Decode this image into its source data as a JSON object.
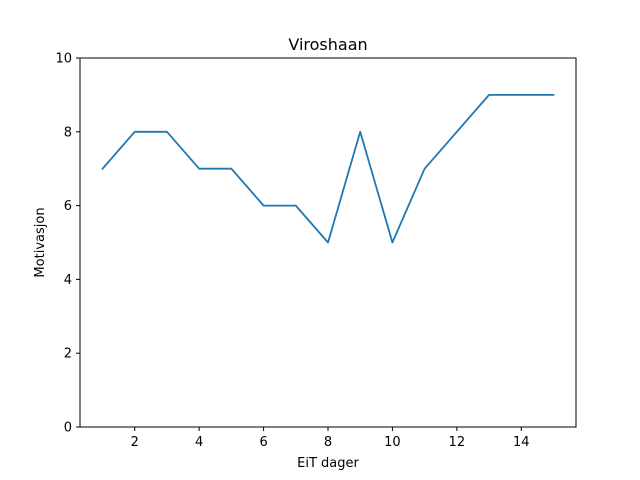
{
  "chart_data": {
    "type": "line",
    "title": "Viroshaan",
    "xlabel": "EiT dager",
    "ylabel": "Motivasjon",
    "xlim": [
      0.3,
      15.7
    ],
    "ylim": [
      0,
      10
    ],
    "xticks": [
      2,
      4,
      6,
      8,
      10,
      12,
      14
    ],
    "yticks": [
      0,
      2,
      4,
      6,
      8,
      10
    ],
    "grid": false,
    "series": [
      {
        "color": "#1f77b4",
        "x": [
          1,
          2,
          3,
          4,
          5,
          6,
          7,
          8,
          9,
          10,
          11,
          12,
          13,
          14,
          15
        ],
        "y": [
          7,
          8,
          8,
          7,
          7,
          6,
          6,
          5,
          8,
          5,
          7,
          8,
          9,
          9,
          9
        ]
      }
    ]
  }
}
